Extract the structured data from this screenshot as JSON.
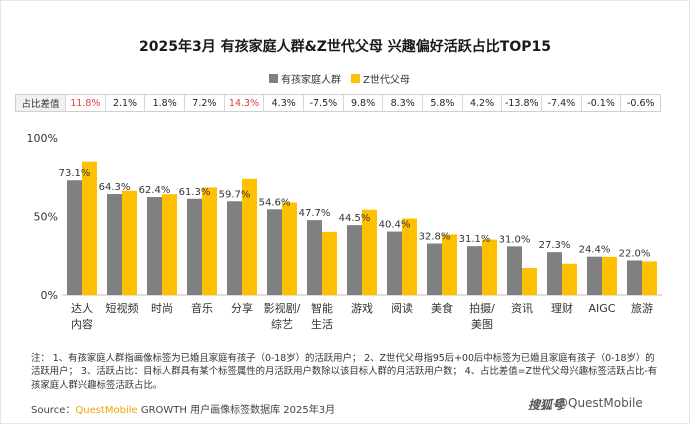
{
  "title": "2025年3月 有孩家庭人群&Z世代父母 兴趣偏好活跃占比TOP15",
  "legend": [
    {
      "name": "有孩家庭人群",
      "color": "#808080"
    },
    {
      "name": "Z世代父母",
      "color": "#FFC000"
    }
  ],
  "diff_table": {
    "header": "占比差值",
    "values": [
      "11.8%",
      "2.1%",
      "1.8%",
      "7.2%",
      "14.3%",
      "4.3%",
      "-7.5%",
      "9.8%",
      "8.3%",
      "5.8%",
      "4.2%",
      "-13.8%",
      "-7.4%",
      "-0.1%",
      "-0.6%"
    ],
    "highlight_color": "#E03C3C"
  },
  "chart_data": {
    "type": "bar",
    "categories": [
      "达人\n内容",
      "短视频",
      "时尚",
      "音乐",
      "分享",
      "影视剧/\n综艺",
      "智能\n生活",
      "游戏",
      "阅读",
      "美食",
      "拍摄/\n美图",
      "资讯",
      "理财",
      "AIGC",
      "旅游"
    ],
    "series": [
      {
        "name": "有孩家庭人群",
        "values": [
          73.1,
          64.3,
          62.4,
          61.3,
          59.7,
          54.6,
          47.7,
          44.5,
          40.4,
          32.8,
          31.1,
          31.0,
          27.3,
          24.4,
          22.0
        ]
      },
      {
        "name": "Z世代父母",
        "values": [
          84.9,
          66.4,
          64.2,
          68.5,
          74.0,
          58.9,
          40.2,
          54.3,
          48.7,
          38.6,
          35.3,
          17.2,
          19.9,
          24.3,
          21.4
        ]
      }
    ],
    "data_labels": [
      "73.1%",
      "64.3%",
      "62.4%",
      "61.3%",
      "59.7%",
      "54.6%",
      "47.7%",
      "44.5%",
      "40.4%",
      "32.8%",
      "31.1%",
      "31.0%",
      "27.3%",
      "24.4%",
      "22.0%"
    ],
    "y_ticks": [
      "0%",
      "50%",
      "100%"
    ],
    "ylim": [
      0,
      100
    ],
    "grid": false
  },
  "note": "注： 1、有孩家庭人群指画像标签为已婚且家庭有孩子（0-18岁）的活跃用户； 2、Z世代父母指95后+00后中标签为已婚且家庭有孩子（0-18岁）的活跃用户； 3、活跃占比：目标人群具有某个标签属性的月活跃用户数除以该目标人群的月活跃用户数； 4、占比差值=Z世代父母兴趣标签活跃占比-有孩家庭人群兴趣标签活跃占比。",
  "source": {
    "label": "Source：",
    "brand": "QuestMobile",
    "text": " GROWTH 用户画像标签数据库 2025年3月"
  },
  "watermark": {
    "logo": "搜狐号",
    "handle": "@QuestMobile"
  }
}
